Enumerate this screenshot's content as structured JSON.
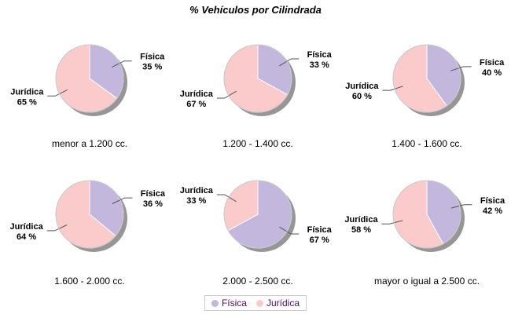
{
  "title": "% Vehículos por Cilindrada",
  "legend": {
    "position": "bottom",
    "items": [
      {
        "label": "Física",
        "color": "#C3B7DD"
      },
      {
        "label": "Jurídica",
        "color": "#FACBCA"
      }
    ]
  },
  "colors": {
    "fisica": "#C3B7DD",
    "juridica": "#FACBCA",
    "shadow": "#969696",
    "outline": "#C4C4C4",
    "leader_line": "#555555",
    "label_text": "#000000",
    "legend_text": "#4B0F63",
    "legend_border": "#CBCBCB"
  },
  "chart_data": [
    {
      "type": "pie",
      "category": "menor a 1.200 cc.",
      "slices": [
        {
          "key": "fisica",
          "label": "Física",
          "pct": 35,
          "value_label": "35 %",
          "color": "#C3B7DD"
        },
        {
          "key": "juridica",
          "label": "Jurídica",
          "pct": 65,
          "value_label": "65 %",
          "color": "#FACBCA"
        }
      ]
    },
    {
      "type": "pie",
      "category": "1.200 - 1.400 cc.",
      "slices": [
        {
          "key": "fisica",
          "label": "Física",
          "pct": 33,
          "value_label": "33 %",
          "color": "#C3B7DD"
        },
        {
          "key": "juridica",
          "label": "Jurídica",
          "pct": 67,
          "value_label": "67 %",
          "color": "#FACBCA"
        }
      ]
    },
    {
      "type": "pie",
      "category": "1.400 - 1.600 cc.",
      "slices": [
        {
          "key": "fisica",
          "label": "Física",
          "pct": 40,
          "value_label": "40 %",
          "color": "#C3B7DD"
        },
        {
          "key": "juridica",
          "label": "Jurídica",
          "pct": 60,
          "value_label": "60 %",
          "color": "#FACBCA"
        }
      ]
    },
    {
      "type": "pie",
      "category": "1.600 - 2.000 cc.",
      "slices": [
        {
          "key": "fisica",
          "label": "Física",
          "pct": 36,
          "value_label": "36 %",
          "color": "#C3B7DD"
        },
        {
          "key": "juridica",
          "label": "Jurídica",
          "pct": 64,
          "value_label": "64 %",
          "color": "#FACBCA"
        }
      ]
    },
    {
      "type": "pie",
      "category": "2.000 - 2.500 cc.",
      "slices": [
        {
          "key": "fisica",
          "label": "Física",
          "pct": 67,
          "value_label": "67 %",
          "color": "#C3B7DD"
        },
        {
          "key": "juridica",
          "label": "Jurídica",
          "pct": 33,
          "value_label": "33 %",
          "color": "#FACBCA"
        }
      ]
    },
    {
      "type": "pie",
      "category": "mayor o igual a 2.500 cc.",
      "slices": [
        {
          "key": "fisica",
          "label": "Física",
          "pct": 42,
          "value_label": "42 %",
          "color": "#C3B7DD"
        },
        {
          "key": "juridica",
          "label": "Jurídica",
          "pct": 58,
          "value_label": "58 %",
          "color": "#FACBCA"
        }
      ]
    }
  ]
}
